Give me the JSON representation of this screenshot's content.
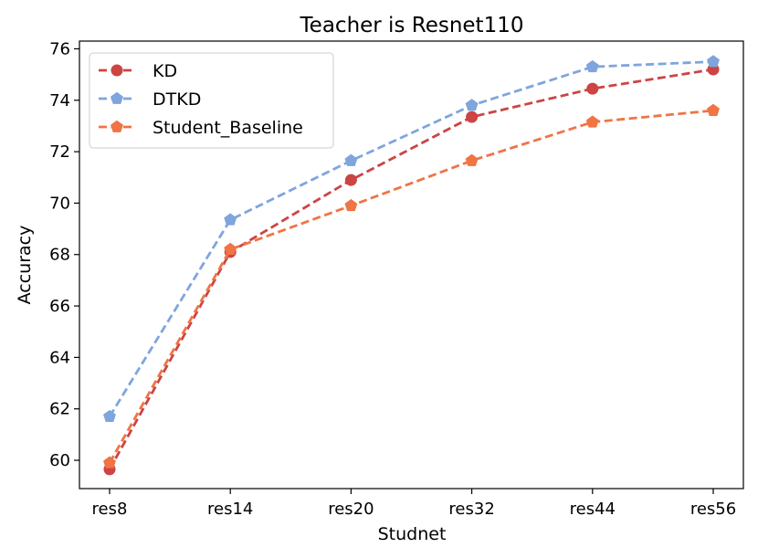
{
  "chart_data": {
    "type": "line",
    "title": "Teacher is Resnet110",
    "xlabel": "Studnet",
    "ylabel": "Accuracy",
    "categories": [
      "res8",
      "res14",
      "res20",
      "res32",
      "res44",
      "res56"
    ],
    "ylim": [
      58.9,
      76.3
    ],
    "yticks": [
      60,
      62,
      64,
      66,
      68,
      70,
      72,
      74,
      76
    ],
    "legend_position": "top-left",
    "grid": false,
    "series": [
      {
        "name": "KD",
        "color": "#cc4444",
        "marker": "circle",
        "values": [
          59.65,
          68.1,
          70.9,
          73.35,
          74.45,
          75.2
        ]
      },
      {
        "name": "DTKD",
        "color": "#7fa5dd",
        "marker": "pentagon",
        "values": [
          61.7,
          69.35,
          71.65,
          73.8,
          75.3,
          75.5
        ]
      },
      {
        "name": "Student_Baseline",
        "color": "#f07444",
        "marker": "pentagon",
        "values": [
          59.9,
          68.2,
          69.9,
          71.65,
          73.15,
          73.6
        ]
      }
    ]
  }
}
